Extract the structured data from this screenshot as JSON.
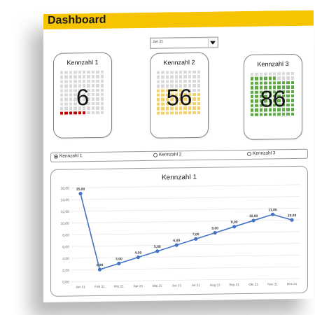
{
  "header": {
    "title": "Dashboard"
  },
  "selector": {
    "value": "Jun 21"
  },
  "kpis": [
    {
      "label": "Kennzahl  1",
      "value": "6",
      "level": 6,
      "fill_color": "#c00000"
    },
    {
      "label": "Kennzahl  2",
      "value": "56",
      "level": 56,
      "fill_color": "#f2d06b"
    },
    {
      "label": "Kennzahl  3",
      "value": "86",
      "level": 86,
      "fill_color": "#5ea845"
    }
  ],
  "grid_empty_color": "#d9d9d9",
  "radio_options": [
    {
      "label": "Kennzahl 1",
      "checked": true
    },
    {
      "label": "Kennzahl 2",
      "checked": false
    },
    {
      "label": "Kennzahl 3",
      "checked": false
    }
  ],
  "chart_data": {
    "type": "line",
    "title": "Kennzahl  1",
    "x": [
      "Jan 21",
      "Feb 21",
      "Mrz 21",
      "Apr 21",
      "Mai 21",
      "Jun 21",
      "Jul 21",
      "Aug 21",
      "Sep 21",
      "Okt 21",
      "Nov 21",
      "Dez 21"
    ],
    "values": [
      15,
      2,
      3,
      4,
      5,
      6,
      7,
      8,
      9,
      10,
      11,
      10
    ],
    "value_labels": [
      "15,00",
      "2,00",
      "3,00",
      "4,00",
      "5,00",
      "6,00",
      "7,00",
      "8,00",
      "9,00",
      "10,00",
      "11,00",
      "10,00"
    ],
    "yticks": [
      "0,00",
      "2,00",
      "4,00",
      "6,00",
      "8,00",
      "10,00",
      "12,00",
      "14,00",
      "16,00"
    ],
    "ylim": [
      0,
      16
    ],
    "grid": true,
    "legend": "none",
    "color": "#4472c4"
  }
}
